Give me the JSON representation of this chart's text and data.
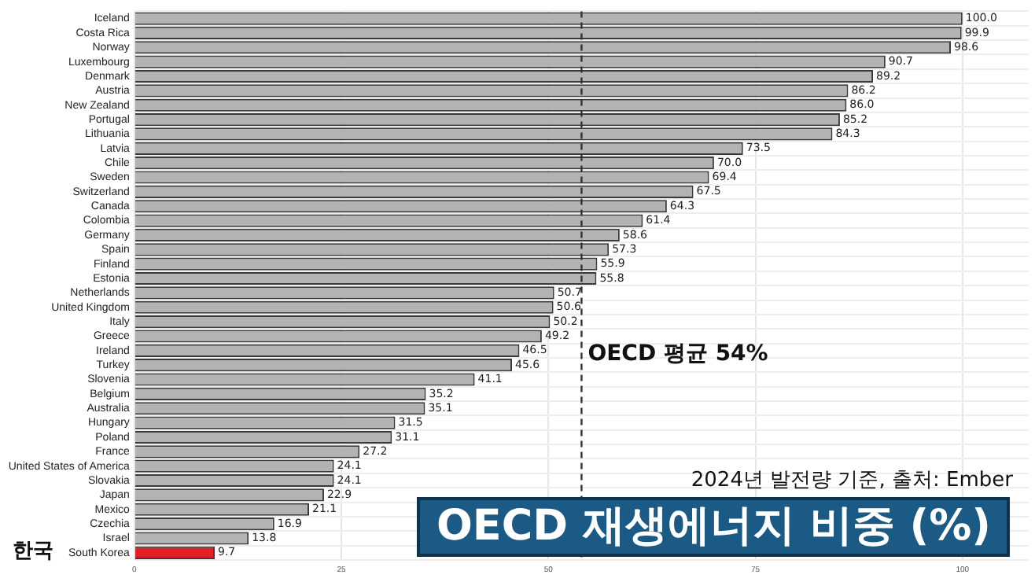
{
  "chart_data": {
    "type": "bar",
    "orientation": "horizontal",
    "title": "OECD 재생에너지 비중 (%)",
    "subtitle": "2024년 발전량 기준, 출처: Ember",
    "categories": [
      "Iceland",
      "Costa Rica",
      "Norway",
      "Luxembourg",
      "Denmark",
      "Austria",
      "New Zealand",
      "Portugal",
      "Lithuania",
      "Latvia",
      "Chile",
      "Sweden",
      "Switzerland",
      "Canada",
      "Colombia",
      "Germany",
      "Spain",
      "Finland",
      "Estonia",
      "Netherlands",
      "United Kingdom",
      "Italy",
      "Greece",
      "Ireland",
      "Turkey",
      "Slovenia",
      "Belgium",
      "Australia",
      "Hungary",
      "Poland",
      "France",
      "United States of America",
      "Slovakia",
      "Japan",
      "Mexico",
      "Czechia",
      "Israel",
      "South Korea"
    ],
    "values": [
      100.0,
      99.9,
      98.6,
      90.7,
      89.2,
      86.2,
      86.0,
      85.2,
      84.3,
      73.5,
      70.0,
      69.4,
      67.5,
      64.3,
      61.4,
      58.6,
      57.3,
      55.9,
      55.8,
      50.7,
      50.6,
      50.2,
      49.2,
      46.5,
      45.6,
      41.1,
      35.2,
      35.1,
      31.5,
      31.1,
      27.2,
      24.1,
      24.1,
      22.9,
      21.1,
      16.9,
      13.8,
      9.7
    ],
    "value_labels": [
      "100.0",
      "99.9",
      "98.6",
      "90.7",
      "89.2",
      "86.2",
      "86.0",
      "85.2",
      "84.3",
      "73.5",
      "70.0",
      "69.4",
      "67.5",
      "64.3",
      "61.4",
      "58.6",
      "57.3",
      "55.9",
      "55.8",
      "50.7",
      "50.6",
      "50.2",
      "49.2",
      "46.5",
      "45.6",
      "41.1",
      "35.2",
      "35.1",
      "31.5",
      "31.1",
      "27.2",
      "24.1",
      "24.1",
      "22.9",
      "21.1",
      "16.9",
      "13.8",
      "9.7"
    ],
    "colors": [
      "#b3b3b3",
      "#b3b3b3",
      "#b3b3b3",
      "#b3b3b3",
      "#b3b3b3",
      "#b3b3b3",
      "#b3b3b3",
      "#b3b3b3",
      "#b3b3b3",
      "#b3b3b3",
      "#b3b3b3",
      "#b3b3b3",
      "#b3b3b3",
      "#b3b3b3",
      "#b3b3b3",
      "#b3b3b3",
      "#b3b3b3",
      "#b3b3b3",
      "#b3b3b3",
      "#b3b3b3",
      "#b3b3b3",
      "#b3b3b3",
      "#b3b3b3",
      "#b3b3b3",
      "#b3b3b3",
      "#b3b3b3",
      "#b3b3b3",
      "#b3b3b3",
      "#b3b3b3",
      "#b3b3b3",
      "#b3b3b3",
      "#b3b3b3",
      "#b3b3b3",
      "#b3b3b3",
      "#b3b3b3",
      "#b3b3b3",
      "#b3b3b3",
      "#e31e24"
    ],
    "xlim": [
      0,
      108
    ],
    "xticks": [
      0,
      25,
      50,
      75,
      100
    ],
    "grid": true,
    "ref_lines": [
      {
        "axis": "x",
        "value": 54,
        "label": "OECD 평균 54%",
        "line_style": "dashed",
        "color": "#333333"
      }
    ],
    "annotations": [
      "한국"
    ]
  }
}
